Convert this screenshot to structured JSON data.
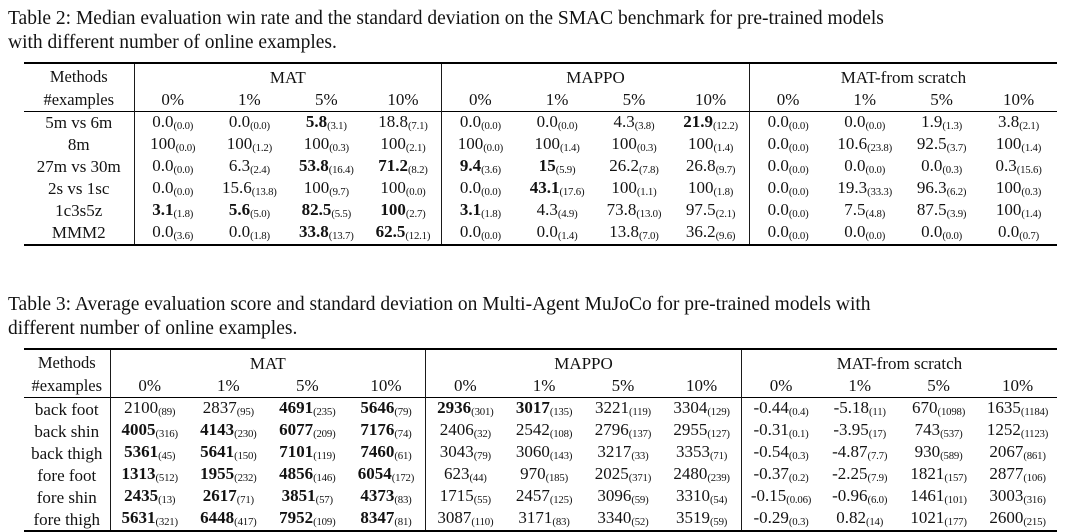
{
  "page": {
    "background": "#ffffff",
    "text_color": "#121212",
    "rule_color": "#000000"
  },
  "tables": [
    {
      "caption_line1": "Table 2: Median evaluation win rate and the standard deviation on the SMAC benchmark for pre-trained models",
      "caption_line2": "with different number of online examples.",
      "header": {
        "col1_top": "Methods",
        "col1_bottom": "#examples",
        "groups": [
          {
            "name": "MAT",
            "cols": [
              "0%",
              "1%",
              "5%",
              "10%"
            ]
          },
          {
            "name": "MAPPO",
            "cols": [
              "0%",
              "1%",
              "5%",
              "10%"
            ]
          },
          {
            "name": "MAT-from scratch",
            "cols": [
              "0%",
              "1%",
              "5%",
              "10%"
            ]
          }
        ]
      },
      "rows": [
        {
          "label": "5m vs 6m",
          "cells": [
            [
              "0.0",
              "(0.0)",
              0
            ],
            [
              "0.0",
              "(0.0)",
              0
            ],
            [
              "5.8",
              "(3.1)",
              1
            ],
            [
              "18.8",
              "(7.1)",
              0
            ],
            [
              "0.0",
              "(0.0)",
              0
            ],
            [
              "0.0",
              "(0.0)",
              0
            ],
            [
              "4.3",
              "(3.8)",
              0
            ],
            [
              "21.9",
              "(12.2)",
              1
            ],
            [
              "0.0",
              "(0.0)",
              0
            ],
            [
              "0.0",
              "(0.0)",
              0
            ],
            [
              "1.9",
              "(1.3)",
              0
            ],
            [
              "3.8",
              "(2.1)",
              0
            ]
          ]
        },
        {
          "label": "8m",
          "cells": [
            [
              "100",
              "(0.0)",
              0
            ],
            [
              "100",
              "(1.2)",
              0
            ],
            [
              "100",
              "(0.3)",
              0
            ],
            [
              "100",
              "(2.1)",
              0
            ],
            [
              "100",
              "(0.0)",
              0
            ],
            [
              "100",
              "(1.4)",
              0
            ],
            [
              "100",
              "(0.3)",
              0
            ],
            [
              "100",
              "(1.4)",
              0
            ],
            [
              "0.0",
              "(0.0)",
              0
            ],
            [
              "10.6",
              "(23.8)",
              0
            ],
            [
              "92.5",
              "(3.7)",
              0
            ],
            [
              "100",
              "(1.4)",
              0
            ]
          ]
        },
        {
          "label": "27m vs 30m",
          "cells": [
            [
              "0.0",
              "(0.0)",
              0
            ],
            [
              "6.3",
              "(2.4)",
              0
            ],
            [
              "53.8",
              "(16.4)",
              1
            ],
            [
              "71.2",
              "(8.2)",
              1
            ],
            [
              "9.4",
              "(3.6)",
              1
            ],
            [
              "15",
              "(5.9)",
              1
            ],
            [
              "26.2",
              "(7.8)",
              0
            ],
            [
              "26.8",
              "(9.7)",
              0
            ],
            [
              "0.0",
              "(0.0)",
              0
            ],
            [
              "0.0",
              "(0.0)",
              0
            ],
            [
              "0.0",
              "(0.3)",
              0
            ],
            [
              "0.3",
              "(15.6)",
              0
            ]
          ]
        },
        {
          "label": "2s vs 1sc",
          "cells": [
            [
              "0.0",
              "(0.0)",
              0
            ],
            [
              "15.6",
              "(13.8)",
              0
            ],
            [
              "100",
              "(9.7)",
              0
            ],
            [
              "100",
              "(0.0)",
              0
            ],
            [
              "0.0",
              "(0.0)",
              0
            ],
            [
              "43.1",
              "(17.6)",
              1
            ],
            [
              "100",
              "(1.1)",
              0
            ],
            [
              "100",
              "(1.8)",
              0
            ],
            [
              "0.0",
              "(0.0)",
              0
            ],
            [
              "19.3",
              "(33.3)",
              0
            ],
            [
              "96.3",
              "(6.2)",
              0
            ],
            [
              "100",
              "(0.3)",
              0
            ]
          ]
        },
        {
          "label": "1c3s5z",
          "cells": [
            [
              "3.1",
              "(1.8)",
              1
            ],
            [
              "5.6",
              "(5.0)",
              1
            ],
            [
              "82.5",
              "(5.5)",
              1
            ],
            [
              "100",
              "(2.7)",
              1
            ],
            [
              "3.1",
              "(1.8)",
              1
            ],
            [
              "4.3",
              "(4.9)",
              0
            ],
            [
              "73.8",
              "(13.0)",
              0
            ],
            [
              "97.5",
              "(2.1)",
              0
            ],
            [
              "0.0",
              "(0.0)",
              0
            ],
            [
              "7.5",
              "(4.8)",
              0
            ],
            [
              "87.5",
              "(3.9)",
              0
            ],
            [
              "100",
              "(1.4)",
              0
            ]
          ]
        },
        {
          "label": "MMM2",
          "cells": [
            [
              "0.0",
              "(3.6)",
              0
            ],
            [
              "0.0",
              "(1.8)",
              0
            ],
            [
              "33.8",
              "(13.7)",
              1
            ],
            [
              "62.5",
              "(12.1)",
              1
            ],
            [
              "0.0",
              "(0.0)",
              0
            ],
            [
              "0.0",
              "(1.4)",
              0
            ],
            [
              "13.8",
              "(7.0)",
              0
            ],
            [
              "36.2",
              "(9.6)",
              0
            ],
            [
              "0.0",
              "(0.0)",
              0
            ],
            [
              "0.0",
              "(0.0)",
              0
            ],
            [
              "0.0",
              "(0.0)",
              0
            ],
            [
              "0.0",
              "(0.7)",
              0
            ]
          ]
        }
      ]
    },
    {
      "caption_line1": "Table 3: Average evaluation score and standard deviation on Multi-Agent MuJoCo for pre-trained models with",
      "caption_line2": "different number of online examples.",
      "header": {
        "col1_top": "Methods",
        "col1_bottom": "#examples",
        "groups": [
          {
            "name": "MAT",
            "cols": [
              "0%",
              "1%",
              "5%",
              "10%"
            ]
          },
          {
            "name": "MAPPO",
            "cols": [
              "0%",
              "1%",
              "5%",
              "10%"
            ]
          },
          {
            "name": "MAT-from scratch",
            "cols": [
              "0%",
              "1%",
              "5%",
              "10%"
            ]
          }
        ]
      },
      "rows": [
        {
          "label": "back foot",
          "cells": [
            [
              "2100",
              "(89)",
              0
            ],
            [
              "2837",
              "(95)",
              0
            ],
            [
              "4691",
              "(235)",
              1
            ],
            [
              "5646",
              "(79)",
              1
            ],
            [
              "2936",
              "(301)",
              1
            ],
            [
              "3017",
              "(135)",
              1
            ],
            [
              "3221",
              "(119)",
              0
            ],
            [
              "3304",
              "(129)",
              0
            ],
            [
              "-0.44",
              "(0.4)",
              0
            ],
            [
              "-5.18",
              "(11)",
              0
            ],
            [
              "670",
              "(1098)",
              0
            ],
            [
              "1635",
              "(1184)",
              0
            ]
          ]
        },
        {
          "label": "back shin",
          "cells": [
            [
              "4005",
              "(316)",
              1
            ],
            [
              "4143",
              "(230)",
              1
            ],
            [
              "6077",
              "(209)",
              1
            ],
            [
              "7176",
              "(74)",
              1
            ],
            [
              "2406",
              "(32)",
              0
            ],
            [
              "2542",
              "(108)",
              0
            ],
            [
              "2796",
              "(137)",
              0
            ],
            [
              "2955",
              "(127)",
              0
            ],
            [
              "-0.31",
              "(0.1)",
              0
            ],
            [
              "-3.95",
              "(17)",
              0
            ],
            [
              "743",
              "(537)",
              0
            ],
            [
              "1252",
              "(1123)",
              0
            ]
          ]
        },
        {
          "label": "back thigh",
          "cells": [
            [
              "5361",
              "(45)",
              1
            ],
            [
              "5641",
              "(150)",
              1
            ],
            [
              "7101",
              "(119)",
              1
            ],
            [
              "7460",
              "(61)",
              1
            ],
            [
              "3043",
              "(79)",
              0
            ],
            [
              "3060",
              "(143)",
              0
            ],
            [
              "3217",
              "(33)",
              0
            ],
            [
              "3353",
              "(71)",
              0
            ],
            [
              "-0.54",
              "(0.3)",
              0
            ],
            [
              "-4.87",
              "(7.7)",
              0
            ],
            [
              "930",
              "(589)",
              0
            ],
            [
              "2067",
              "(861)",
              0
            ]
          ]
        },
        {
          "label": "fore foot",
          "cells": [
            [
              "1313",
              "(512)",
              1
            ],
            [
              "1955",
              "(232)",
              1
            ],
            [
              "4856",
              "(146)",
              1
            ],
            [
              "6054",
              "(172)",
              1
            ],
            [
              "623",
              "(44)",
              0
            ],
            [
              "970",
              "(185)",
              0
            ],
            [
              "2025",
              "(371)",
              0
            ],
            [
              "2480",
              "(239)",
              0
            ],
            [
              "-0.37",
              "(0.2)",
              0
            ],
            [
              "-2.25",
              "(7.9)",
              0
            ],
            [
              "1821",
              "(157)",
              0
            ],
            [
              "2877",
              "(106)",
              0
            ]
          ]
        },
        {
          "label": "fore shin",
          "cells": [
            [
              "2435",
              "(13)",
              1
            ],
            [
              "2617",
              "(71)",
              1
            ],
            [
              "3851",
              "(57)",
              1
            ],
            [
              "4373",
              "(83)",
              1
            ],
            [
              "1715",
              "(55)",
              0
            ],
            [
              "2457",
              "(125)",
              0
            ],
            [
              "3096",
              "(59)",
              0
            ],
            [
              "3310",
              "(54)",
              0
            ],
            [
              "-0.15",
              "(0.06)",
              0
            ],
            [
              "-0.96",
              "(6.0)",
              0
            ],
            [
              "1461",
              "(101)",
              0
            ],
            [
              "3003",
              "(316)",
              0
            ]
          ]
        },
        {
          "label": "fore thigh",
          "cells": [
            [
              "5631",
              "(321)",
              1
            ],
            [
              "6448",
              "(417)",
              1
            ],
            [
              "7952",
              "(109)",
              1
            ],
            [
              "8347",
              "(81)",
              1
            ],
            [
              "3087",
              "(110)",
              0
            ],
            [
              "3171",
              "(83)",
              0
            ],
            [
              "3340",
              "(52)",
              0
            ],
            [
              "3519",
              "(59)",
              0
            ],
            [
              "-0.29",
              "(0.3)",
              0
            ],
            [
              "0.82",
              "(14)",
              0
            ],
            [
              "1021",
              "(177)",
              0
            ],
            [
              "2600",
              "(215)",
              0
            ]
          ]
        }
      ]
    }
  ]
}
